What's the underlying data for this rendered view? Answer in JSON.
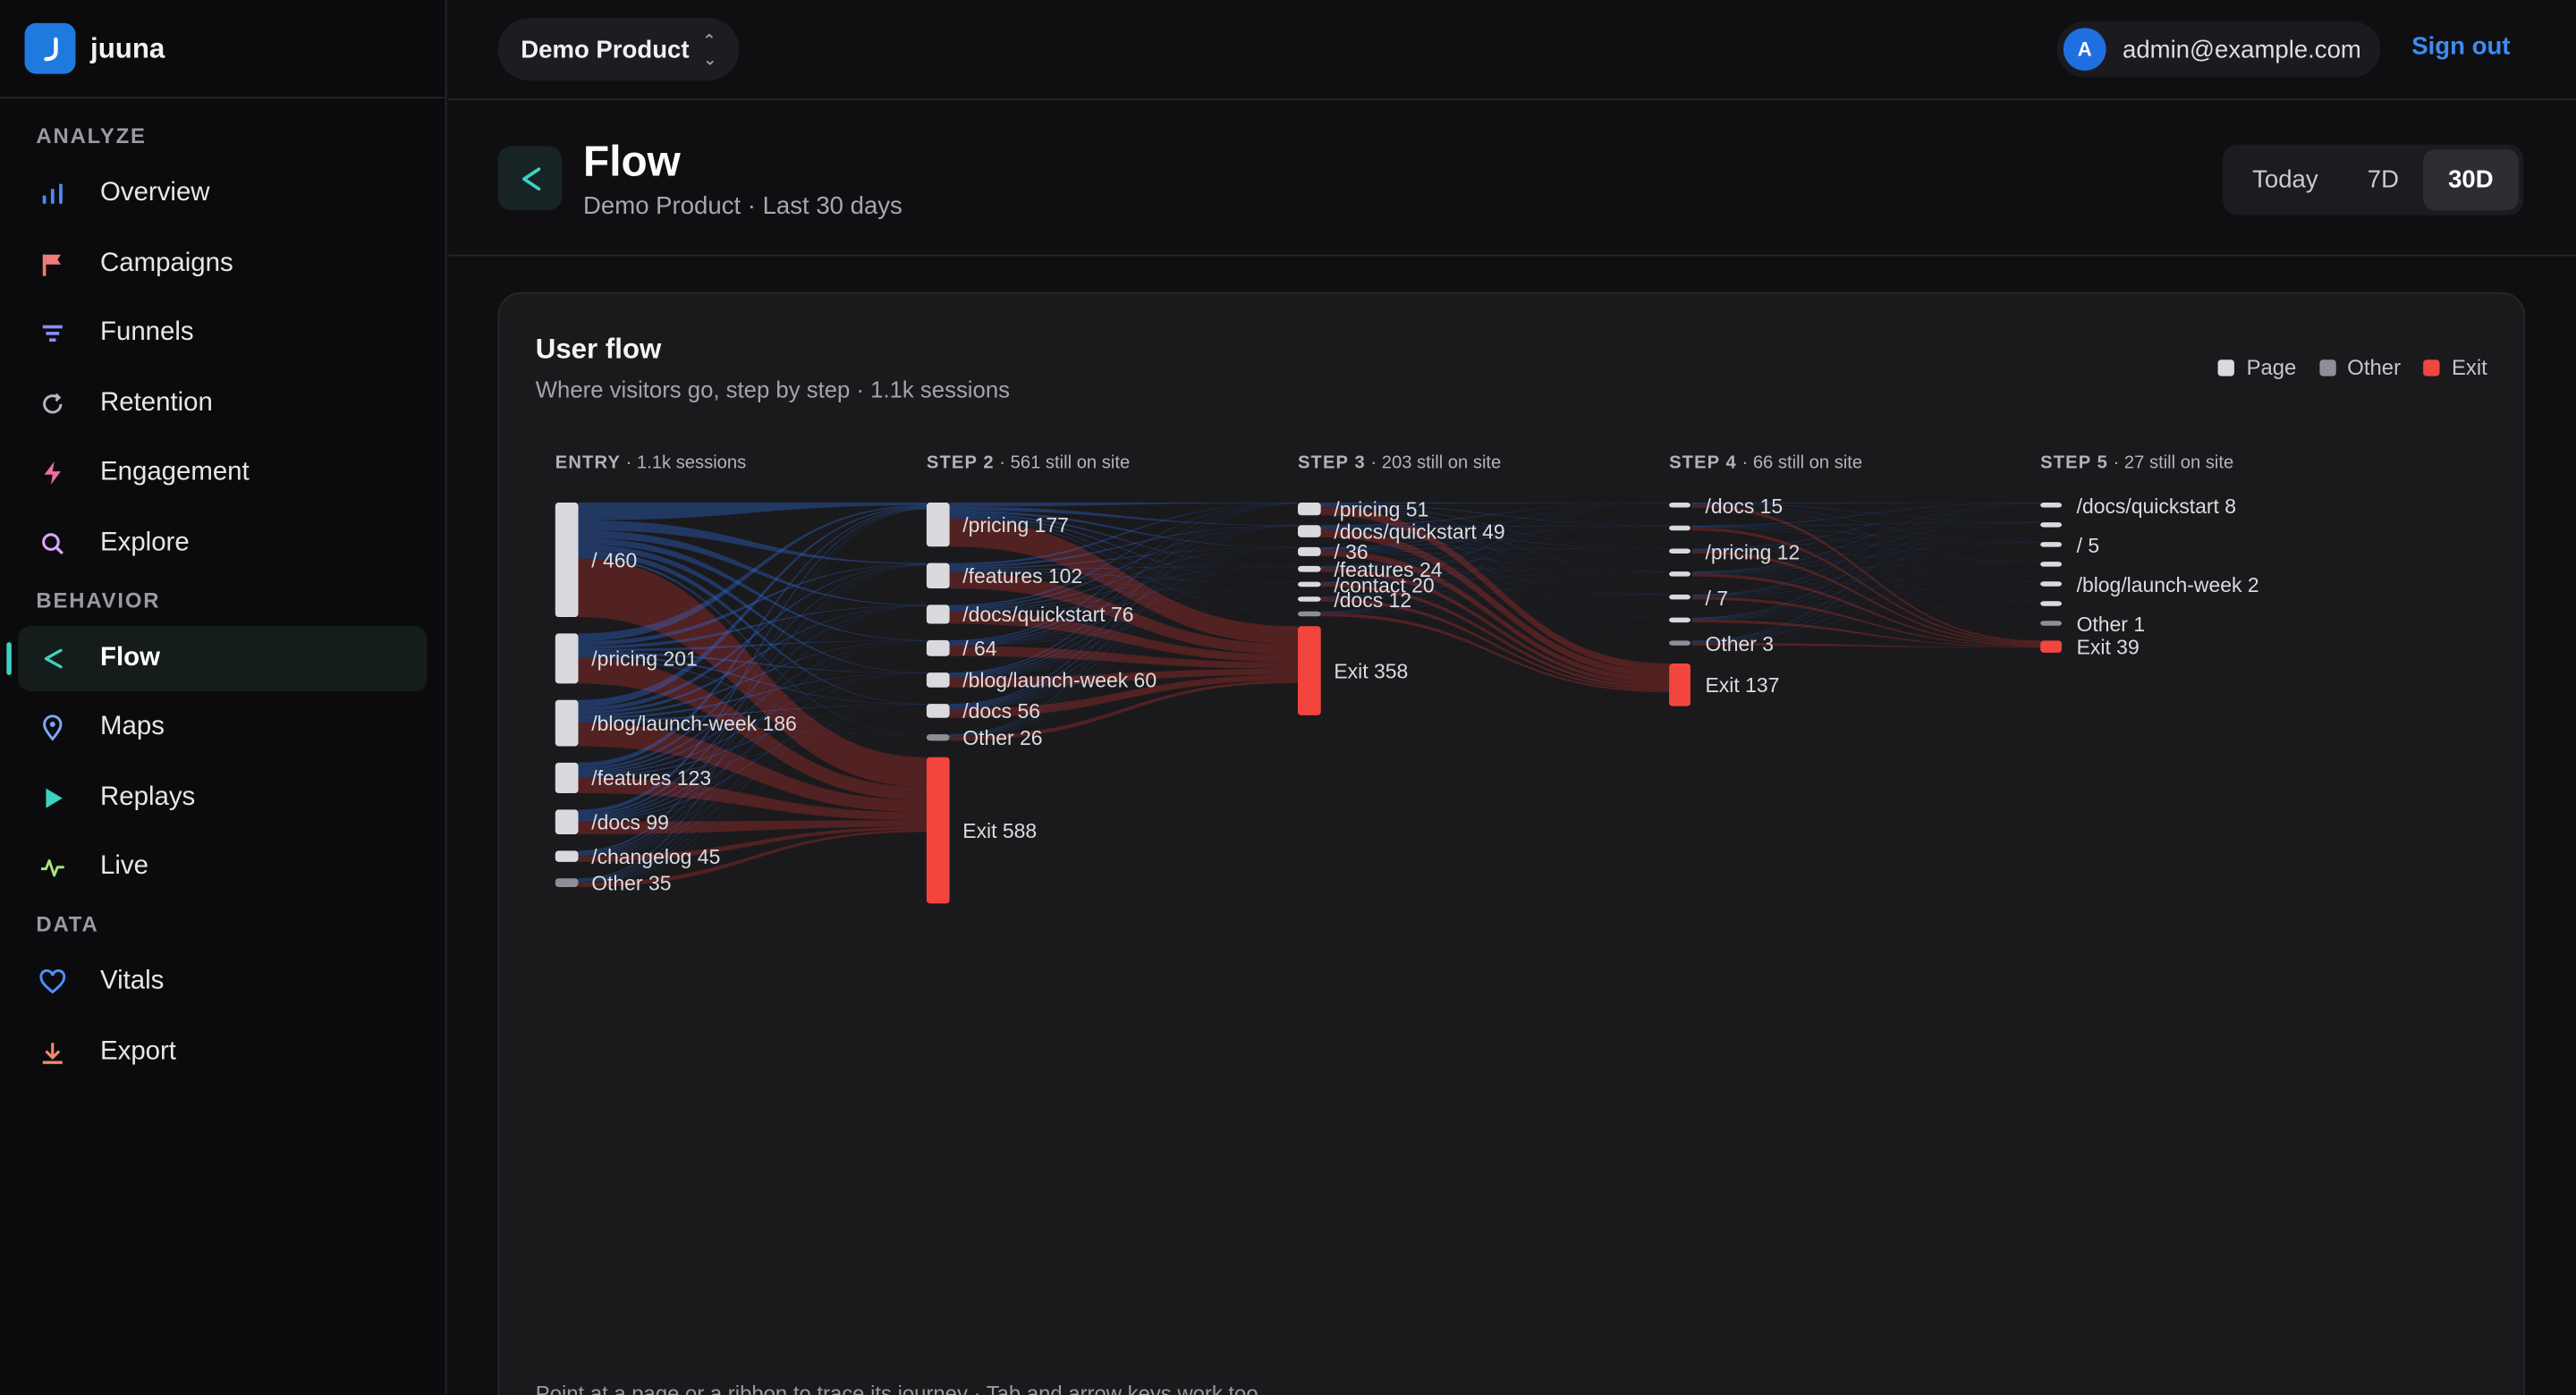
{
  "brand": {
    "name": "juuna",
    "logo_color": "#1f7ae0"
  },
  "sidebar": {
    "sections": [
      {
        "title": "ANALYZE",
        "items": [
          {
            "label": "Overview",
            "icon": "bar-chart-icon",
            "color": "#4a8ff0"
          },
          {
            "label": "Campaigns",
            "icon": "flag-icon",
            "color": "#f07a7a"
          },
          {
            "label": "Funnels",
            "icon": "funnel-icon",
            "color": "#8a8cf5"
          },
          {
            "label": "Retention",
            "icon": "refresh-icon",
            "color": "#b5b5bb"
          },
          {
            "label": "Engagement",
            "icon": "bolt-icon",
            "color": "#ef6fa0"
          },
          {
            "label": "Explore",
            "icon": "search-icon",
            "color": "#d7a6ff"
          }
        ]
      },
      {
        "title": "BEHAVIOR",
        "items": [
          {
            "label": "Flow",
            "icon": "share-icon",
            "color": "#3fd1c0",
            "active": true
          },
          {
            "label": "Maps",
            "icon": "map-pin-icon",
            "color": "#7fa7ff"
          },
          {
            "label": "Replays",
            "icon": "play-icon",
            "color": "#3fd1c0"
          },
          {
            "label": "Live",
            "icon": "pulse-icon",
            "color": "#a8e27a"
          }
        ]
      },
      {
        "title": "DATA",
        "items": [
          {
            "label": "Vitals",
            "icon": "heart-icon",
            "color": "#4f8ff7"
          },
          {
            "label": "Export",
            "icon": "download-icon",
            "color": "#f08a70"
          }
        ]
      }
    ]
  },
  "topbar": {
    "product": "Demo Product",
    "user_initial": "A",
    "user_email": "admin@example.com",
    "sign_out": "Sign out"
  },
  "header": {
    "title": "Flow",
    "subtitle": "Demo Product · Last 30 days",
    "ranges": [
      "Today",
      "7D",
      "30D"
    ],
    "active_range": "30D"
  },
  "card": {
    "title": "User flow",
    "subtitle": "Where visitors go, step by step · 1.1k sessions",
    "legend": [
      {
        "label": "Page",
        "color": "#d9d9de"
      },
      {
        "label": "Other",
        "color": "#8e8e96"
      },
      {
        "label": "Exit",
        "color": "#f2453d"
      }
    ],
    "hint": "Point at a page or a ribbon to trace its journey · Tab and arrow keys work too."
  },
  "chart_data": {
    "type": "sankey",
    "columns": [
      {
        "head": "ENTRY",
        "sub": " · 1.1k sessions",
        "nodes": [
          {
            "label": "/ 460",
            "value": 460,
            "kind": "page"
          },
          {
            "label": "/pricing 201",
            "value": 201,
            "kind": "page"
          },
          {
            "label": "/blog/launch-week 186",
            "value": 186,
            "kind": "page"
          },
          {
            "label": "/features 123",
            "value": 123,
            "kind": "page"
          },
          {
            "label": "/docs 99",
            "value": 99,
            "kind": "page"
          },
          {
            "label": "/changelog 45",
            "value": 45,
            "kind": "page"
          },
          {
            "label": "Other 35",
            "value": 35,
            "kind": "other"
          }
        ]
      },
      {
        "head": "STEP 2",
        "sub": " · 561 still on site",
        "nodes": [
          {
            "label": "/pricing 177",
            "value": 177,
            "kind": "page"
          },
          {
            "label": "/features 102",
            "value": 102,
            "kind": "page"
          },
          {
            "label": "/docs/quickstart 76",
            "value": 76,
            "kind": "page"
          },
          {
            "label": "/ 64",
            "value": 64,
            "kind": "page"
          },
          {
            "label": "/blog/launch-week 60",
            "value": 60,
            "kind": "page"
          },
          {
            "label": "/docs 56",
            "value": 56,
            "kind": "page"
          },
          {
            "label": "Other 26",
            "value": 26,
            "kind": "other"
          },
          {
            "label": "Exit 588",
            "value": 588,
            "kind": "exit"
          }
        ]
      },
      {
        "head": "STEP 3",
        "sub": " · 203 still on site",
        "nodes": [
          {
            "label": "/pricing 51",
            "value": 51,
            "kind": "page"
          },
          {
            "label": "/docs/quickstart 49",
            "value": 49,
            "kind": "page"
          },
          {
            "label": "/ 36",
            "value": 36,
            "kind": "page"
          },
          {
            "label": "/features 24",
            "value": 24,
            "kind": "page"
          },
          {
            "label": "/contact 20",
            "value": 20,
            "kind": "page"
          },
          {
            "label": "/docs 12",
            "value": 12,
            "kind": "page"
          },
          {
            "label": "",
            "value": 11,
            "kind": "other"
          },
          {
            "label": "Exit 358",
            "value": 358,
            "kind": "exit"
          }
        ]
      },
      {
        "head": "STEP 4",
        "sub": " · 66 still on site",
        "nodes": [
          {
            "label": "/docs 15",
            "value": 15,
            "kind": "page"
          },
          {
            "label": "",
            "value": 13,
            "kind": "page"
          },
          {
            "label": "/pricing 12",
            "value": 12,
            "kind": "page"
          },
          {
            "label": "",
            "value": 10,
            "kind": "page"
          },
          {
            "label": "/ 7",
            "value": 7,
            "kind": "page"
          },
          {
            "label": "",
            "value": 6,
            "kind": "page"
          },
          {
            "label": "Other 3",
            "value": 3,
            "kind": "other"
          },
          {
            "label": "Exit 137",
            "value": 137,
            "kind": "exit"
          }
        ]
      },
      {
        "head": "STEP 5",
        "sub": " · 27 still on site",
        "nodes": [
          {
            "label": "/docs/quickstart 8",
            "value": 8,
            "kind": "page"
          },
          {
            "label": "",
            "value": 6,
            "kind": "page"
          },
          {
            "label": "/ 5",
            "value": 5,
            "kind": "page"
          },
          {
            "label": "",
            "value": 4,
            "kind": "page"
          },
          {
            "label": "/blog/launch-week 2",
            "value": 2,
            "kind": "page"
          },
          {
            "label": "",
            "value": 1,
            "kind": "page"
          },
          {
            "label": "Other 1",
            "value": 1,
            "kind": "other"
          },
          {
            "label": "Exit 39",
            "value": 39,
            "kind": "exit"
          }
        ]
      }
    ],
    "colors": {
      "page": "#d9d9de",
      "other": "#8e8e96",
      "exit": "#f2453d",
      "flow": "#2f6fe0",
      "exit_flow": "#c4302c"
    }
  }
}
